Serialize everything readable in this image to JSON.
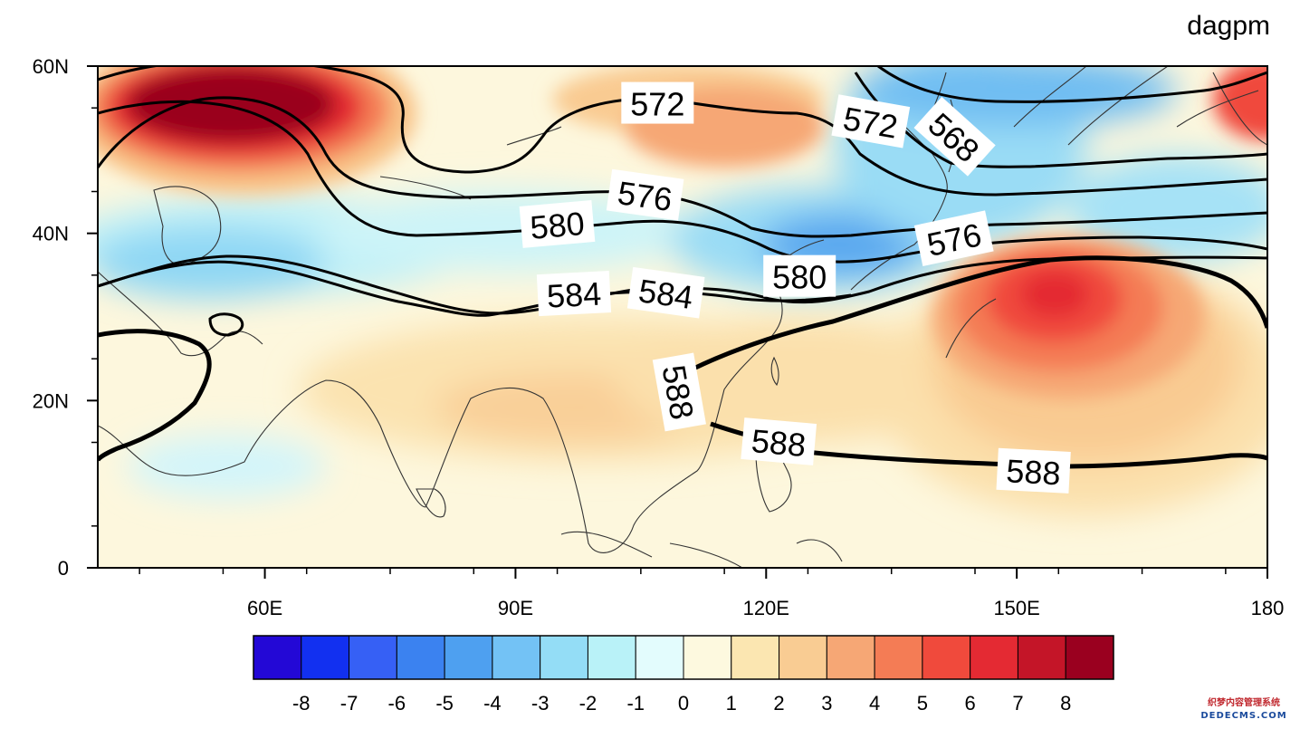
{
  "map": {
    "unit_label": "dagpm",
    "colors": {
      "ocean_base": "#fdf7dd",
      "contour": "#000000",
      "coast": "#333333"
    }
  },
  "axes": {
    "lon_range": [
      40,
      180
    ],
    "lat_range": [
      0,
      60
    ],
    "x_ticks": [
      {
        "value": 60,
        "label": "60E"
      },
      {
        "value": 90,
        "label": "90E"
      },
      {
        "value": 120,
        "label": "120E"
      },
      {
        "value": 150,
        "label": "150E"
      },
      {
        "value": 180,
        "label": "180"
      }
    ],
    "y_ticks": [
      {
        "value": 0,
        "label": "0"
      },
      {
        "value": 20,
        "label": "20N"
      },
      {
        "value": 40,
        "label": "40N"
      },
      {
        "value": 60,
        "label": "60N"
      }
    ]
  },
  "contours": [
    {
      "level": 568,
      "labels": [
        {
          "text": "568",
          "lon": 142.5,
          "lat": 51.5,
          "rotate": 42
        }
      ]
    },
    {
      "level": 572,
      "labels": [
        {
          "text": "572",
          "lon": 107,
          "lat": 55.5,
          "rotate": 0
        },
        {
          "text": "572",
          "lon": 132.5,
          "lat": 53.3,
          "rotate": 10
        }
      ]
    },
    {
      "level": 576,
      "labels": [
        {
          "text": "576",
          "lon": 105.5,
          "lat": 44.5,
          "rotate": 8
        },
        {
          "text": "576",
          "lon": 142.5,
          "lat": 39.3,
          "rotate": -12
        }
      ]
    },
    {
      "level": 580,
      "labels": [
        {
          "text": "580",
          "lon": 95,
          "lat": 41.0,
          "rotate": -5
        },
        {
          "text": "580",
          "lon": 124,
          "lat": 34.8,
          "rotate": 0
        }
      ]
    },
    {
      "level": 584,
      "labels": [
        {
          "text": "584",
          "lon": 97,
          "lat": 32.7,
          "rotate": -3
        },
        {
          "text": "584",
          "lon": 108,
          "lat": 32.8,
          "rotate": 8
        }
      ]
    },
    {
      "level": 588,
      "labels": [
        {
          "text": "588",
          "lon": 109.5,
          "lat": 21.0,
          "rotate": 80
        },
        {
          "text": "588",
          "lon": 121.5,
          "lat": 15.0,
          "rotate": 5
        },
        {
          "text": "588",
          "lon": 152,
          "lat": 11.5,
          "rotate": 3
        }
      ]
    }
  ],
  "colorbar": {
    "colors": [
      "#2308d6",
      "#1230f0",
      "#3660f5",
      "#3b82f0",
      "#4ea0f0",
      "#73c2f5",
      "#94ddf6",
      "#b9f2f8",
      "#e3fcfd",
      "#fdf9df",
      "#fbe6b1",
      "#f9cc93",
      "#f6a775",
      "#f47c55",
      "#f04a3c",
      "#e42a33",
      "#c41528",
      "#9a001f"
    ],
    "labels": [
      "-8",
      "-7",
      "-6",
      "-5",
      "-4",
      "-3",
      "-2",
      "-1",
      "0",
      "1",
      "2",
      "3",
      "4",
      "5",
      "6",
      "7",
      "8"
    ]
  },
  "watermark": {
    "line1": "织梦内容管理系统",
    "line2": "DEDECMS.COM"
  }
}
